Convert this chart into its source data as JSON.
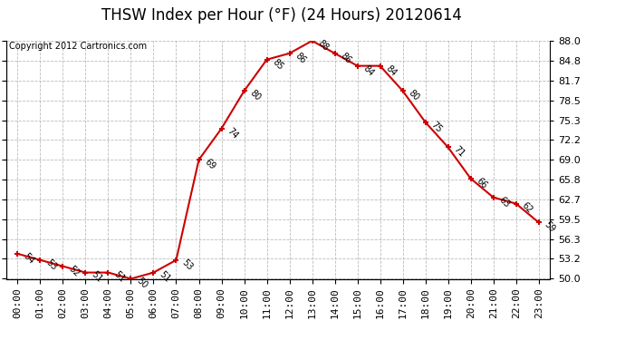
{
  "title": "THSW Index per Hour (°F) (24 Hours) 20120614",
  "copyright": "Copyright 2012 Cartronics.com",
  "hours": [
    "00:00",
    "01:00",
    "02:00",
    "03:00",
    "04:00",
    "05:00",
    "06:00",
    "07:00",
    "08:00",
    "09:00",
    "10:00",
    "11:00",
    "12:00",
    "13:00",
    "14:00",
    "15:00",
    "16:00",
    "17:00",
    "18:00",
    "19:00",
    "20:00",
    "21:00",
    "22:00",
    "23:00"
  ],
  "values": [
    54,
    53,
    52,
    51,
    51,
    50,
    51,
    53,
    69,
    74,
    80,
    85,
    86,
    88,
    86,
    84,
    84,
    80,
    75,
    71,
    66,
    63,
    62,
    59
  ],
  "ylim": [
    50.0,
    88.0
  ],
  "yticks": [
    50.0,
    53.2,
    56.3,
    59.5,
    62.7,
    65.8,
    69.0,
    72.2,
    75.3,
    78.5,
    81.7,
    84.8,
    88.0
  ],
  "line_color": "#cc0000",
  "marker_color": "#cc0000",
  "bg_color": "#ffffff",
  "grid_color": "#bbbbbb",
  "title_fontsize": 12,
  "tick_fontsize": 8,
  "annotation_fontsize": 7,
  "copyright_fontsize": 7
}
